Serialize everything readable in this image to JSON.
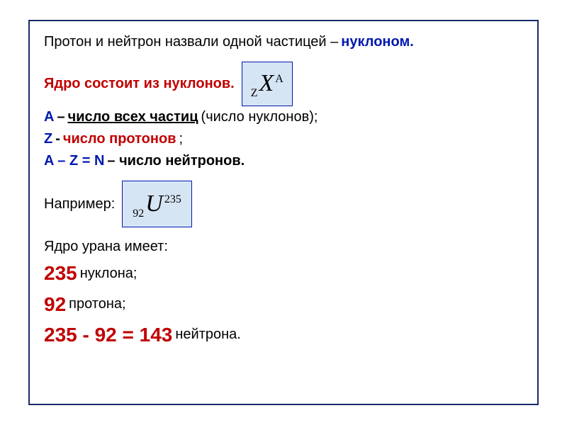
{
  "line1": {
    "t1": "Протон и нейтрон назвали одной частицей –",
    "t2": " нуклоном."
  },
  "line2": {
    "t1": "Ядро состоит из нуклонов."
  },
  "formula1": {
    "sub": "Z",
    "sym": "X",
    "sup": "A"
  },
  "line3": {
    "t1": "А",
    "t2": " – ",
    "t3": "число всех частиц",
    "t4": " (число нуклонов);"
  },
  "line4": {
    "t1": " Z",
    "t2": " - ",
    "t3": "число протонов",
    "t4": ";"
  },
  "line5": {
    "t1": "A – Z = N",
    "t2": " – число нейтронов."
  },
  "line6": {
    "t1": "Например:"
  },
  "formula2": {
    "sub": "92",
    "sym": "U",
    "sup": "235"
  },
  "line7": {
    "t1": "Ядро урана имеет:"
  },
  "line8": {
    "t1": "235",
    "t2": " нуклона;"
  },
  "line9": {
    "t1": "92",
    "t2": " протона;"
  },
  "line10": {
    "t1": "235 - 92 = 143",
    "t2": " нейтрона."
  },
  "colors": {
    "border": "#1a2a6b",
    "blue": "#0018b0",
    "red": "#c00000",
    "box_bg": "#d6e5f3"
  }
}
